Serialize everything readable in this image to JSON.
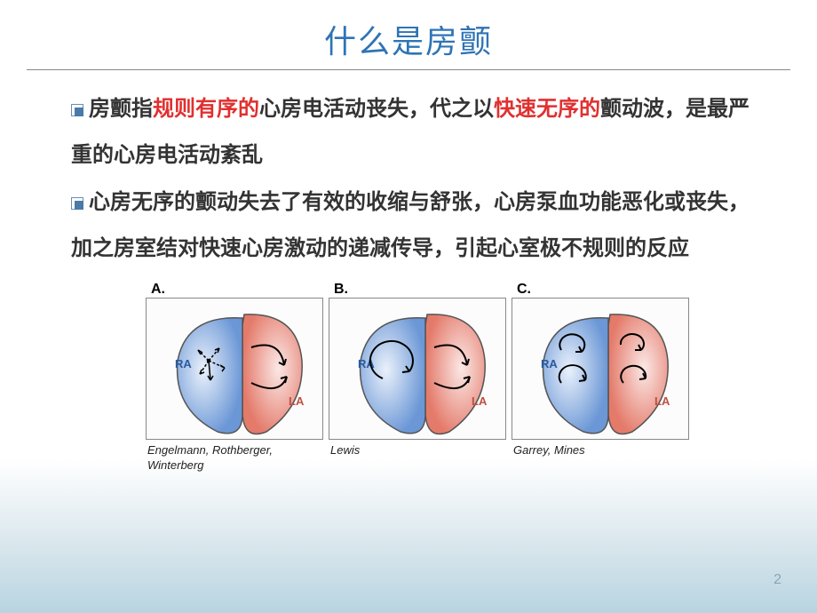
{
  "title": "什么是房颤",
  "bullets": [
    {
      "segments": [
        {
          "t": "房颤指",
          "red": false
        },
        {
          "t": "规则有序的",
          "red": true
        },
        {
          "t": "心房电活动丧失，代之以",
          "red": false
        },
        {
          "t": "快速无序的",
          "red": true
        },
        {
          "t": "颤动波，是最严重的心房电活动紊乱",
          "red": false
        }
      ]
    },
    {
      "segments": [
        {
          "t": "心房无序的颤动失去了有效的收缩与舒张，心房泵血功能恶化或丧失，加之房室结对快速心房激动的递减传导，引起心室极不规则的反应",
          "red": false
        }
      ]
    }
  ],
  "panels": [
    {
      "letter": "A.",
      "caption": "Engelmann, Rothberger, Winterberg",
      "mode": "focal"
    },
    {
      "letter": "B.",
      "caption": "Lewis",
      "mode": "single"
    },
    {
      "letter": "C.",
      "caption": "Garrey, Mines",
      "mode": "multi"
    }
  ],
  "labels": {
    "ra": "RA",
    "la": "LA"
  },
  "colors": {
    "title": "#2e74b5",
    "red": "#e03030",
    "ra_fill_light": "#eaf1fb",
    "ra_fill_dark": "#6b97d6",
    "la_fill_light": "#fbe8e6",
    "la_fill_dark": "#e47a6a",
    "outline": "#555",
    "arrow": "#000"
  },
  "page_number": "2"
}
